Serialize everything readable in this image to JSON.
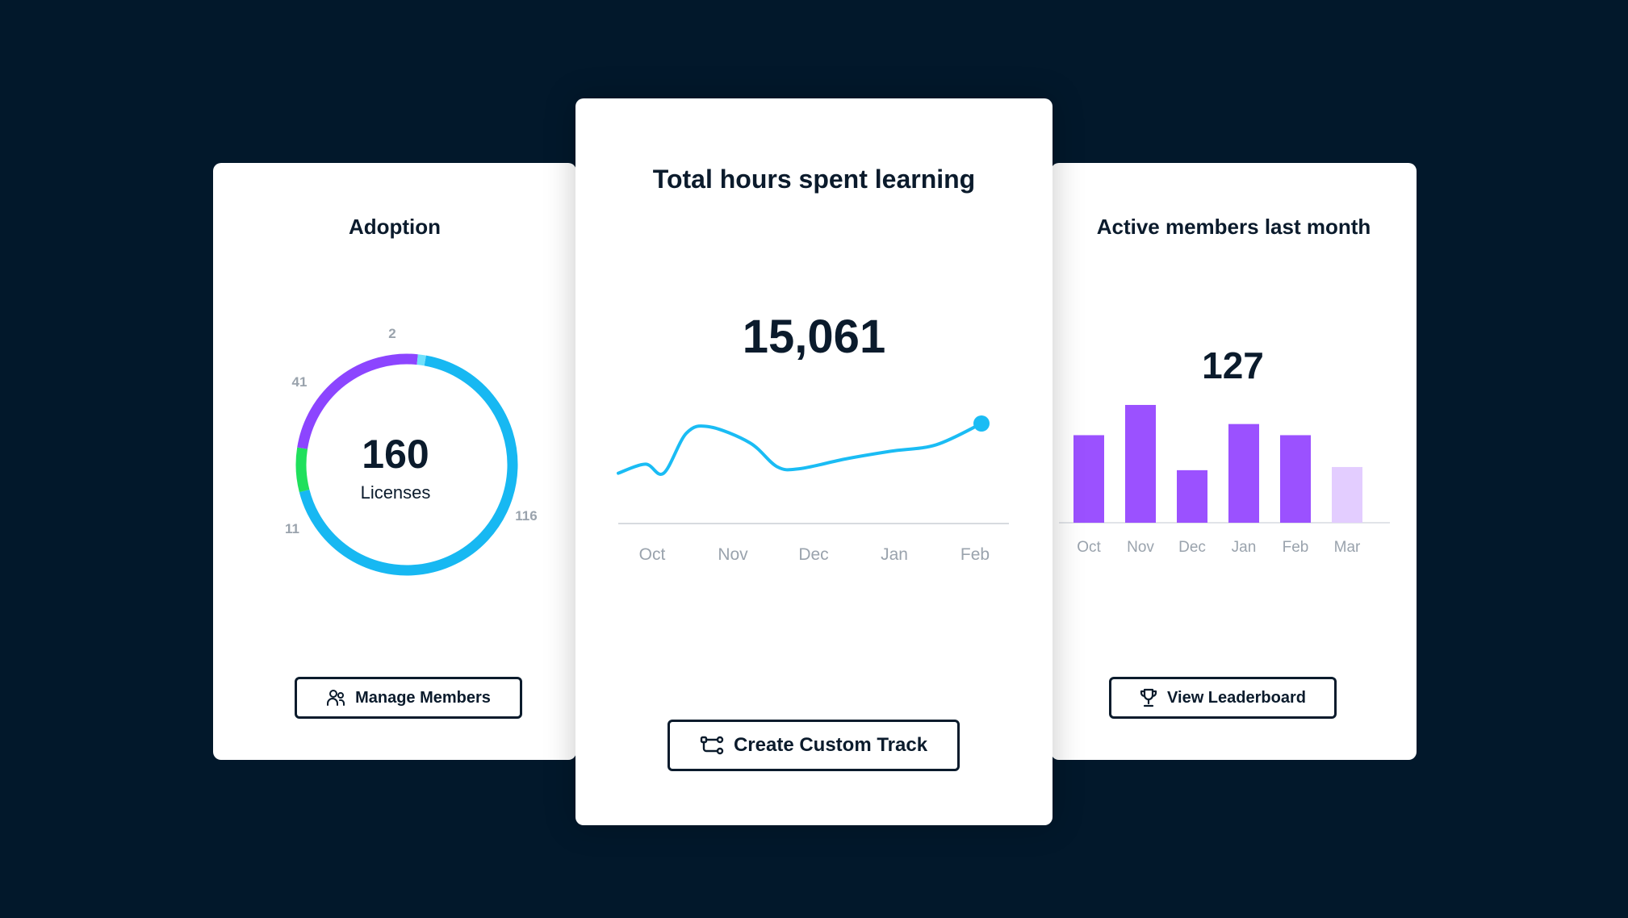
{
  "cards": {
    "adoption": {
      "title": "Adoption",
      "total": "160",
      "total_label": "Licenses",
      "button_label": "Manage Members",
      "button_icon": "users-icon"
    },
    "hours": {
      "title": "Total hours spent learning",
      "total": "15,061",
      "button_label": "Create Custom Track",
      "button_icon": "custom-track-icon"
    },
    "active": {
      "title": "Active members last month",
      "total": "127",
      "button_label": "View Leaderboard",
      "button_icon": "trophy-icon"
    }
  },
  "colors": {
    "background": "#02182B",
    "text": "#0B1B2C",
    "line": "#1ABCF4",
    "bar": "#9B51FF",
    "bar_light": "#E3CDFF",
    "donut_blue": "#17B8F2",
    "donut_purple": "#8C45FF",
    "donut_green": "#1FE05C",
    "donut_light_blue": "#6FE0FB"
  },
  "chart_data": [
    {
      "type": "pie",
      "variant": "donut",
      "segments": [
        {
          "label": "116",
          "value": 116,
          "color": "#17B8F2"
        },
        {
          "label": "11",
          "value": 11,
          "color": "#1FE05C"
        },
        {
          "label": "41",
          "value": 41,
          "color": "#8C45FF"
        },
        {
          "label": "2",
          "value": 2,
          "color": "#6FE0FB"
        }
      ]
    },
    {
      "type": "line",
      "categories": [
        "Oct",
        "Nov",
        "Dec",
        "Jan",
        "Feb"
      ],
      "x": [
        0,
        0.3,
        0.5,
        0.75,
        1,
        1.45,
        1.75,
        2,
        2.5,
        3,
        3.5,
        4
      ],
      "values": [
        0.28,
        0.42,
        0.28,
        0.9,
        1.0,
        0.75,
        0.38,
        0.35,
        0.5,
        0.62,
        0.72,
        1.05
      ],
      "marker_last_point": true
    },
    {
      "type": "bar",
      "categories": [
        "Oct",
        "Nov",
        "Dec",
        "Jan",
        "Feb",
        "Mar"
      ],
      "values": [
        110,
        148,
        66,
        124,
        110,
        70
      ],
      "highlight_last": true,
      "ylim": [
        0,
        150
      ]
    }
  ]
}
